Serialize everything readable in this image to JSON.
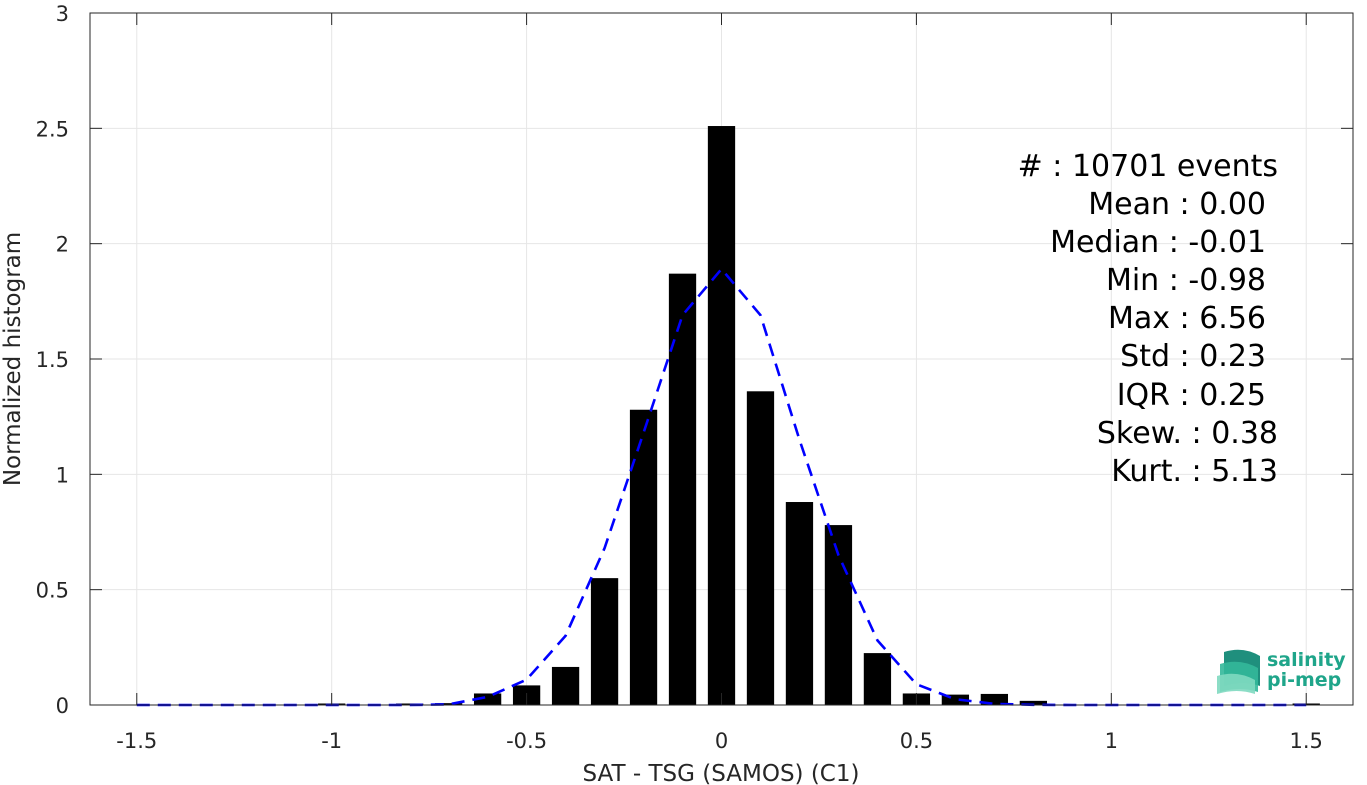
{
  "chart_data": {
    "type": "bar",
    "xlabel": "SAT - TSG (SAMOS) (C1)",
    "ylabel": "Normalized histogram",
    "xlim": [
      -1.62,
      1.62
    ],
    "ylim": [
      0,
      3
    ],
    "xticks": [
      -1.5,
      -1,
      -0.5,
      0,
      0.5,
      1,
      1.5
    ],
    "xtick_labels": [
      "-1.5",
      "-1",
      "-0.5",
      "0",
      "0.5",
      "1",
      "1.5"
    ],
    "yticks": [
      0,
      0.5,
      1,
      1.5,
      2,
      2.5,
      3
    ],
    "ytick_labels": [
      "0",
      "0.5",
      "1",
      "1.5",
      "2",
      "2.5",
      "3"
    ],
    "grid": true,
    "bar_width": 0.07,
    "bars": {
      "x": [
        -1.5,
        -1.4,
        -1.3,
        -1.2,
        -1.1,
        -1.0,
        -0.9,
        -0.8,
        -0.7,
        -0.6,
        -0.5,
        -0.4,
        -0.3,
        -0.2,
        -0.1,
        0.0,
        0.1,
        0.2,
        0.3,
        0.4,
        0.5,
        0.6,
        0.7,
        0.8,
        0.9,
        1.0,
        1.1,
        1.2,
        1.3,
        1.4,
        1.5
      ],
      "values": [
        0,
        0,
        0,
        0,
        0,
        0.003,
        0,
        0.003,
        0.008,
        0.05,
        0.085,
        0.165,
        0.55,
        1.28,
        1.87,
        2.51,
        1.36,
        0.88,
        0.78,
        0.225,
        0.05,
        0.045,
        0.048,
        0.018,
        0,
        0,
        0,
        0,
        0,
        0,
        0.003
      ]
    },
    "fit": {
      "style": "dashed",
      "color": "#0000ff",
      "x": [
        -1.5,
        -1.4,
        -1.3,
        -1.2,
        -1.1,
        -1.0,
        -0.9,
        -0.8,
        -0.7,
        -0.6,
        -0.5,
        -0.4,
        -0.3,
        -0.2,
        -0.1,
        0.0,
        0.1,
        0.2,
        0.3,
        0.4,
        0.5,
        0.6,
        0.7,
        0.8,
        0.9,
        1.0,
        1.1,
        1.2,
        1.3,
        1.4,
        1.5
      ],
      "values": [
        0,
        0,
        0,
        0,
        0,
        0,
        0,
        0,
        0.003,
        0.035,
        0.11,
        0.3,
        0.68,
        1.18,
        1.69,
        1.89,
        1.69,
        1.15,
        0.65,
        0.28,
        0.09,
        0.025,
        0.005,
        0.001,
        0,
        0,
        0,
        0,
        0,
        0,
        0
      ]
    }
  },
  "stats": [
    {
      "label": "#  : 10701 events"
    },
    {
      "label": "Mean : 0.00"
    },
    {
      "label": "Median : -0.01"
    },
    {
      "label": "Min : -0.98"
    },
    {
      "label": "Max : 6.56"
    },
    {
      "label": "Std : 0.23"
    },
    {
      "label": "IQR : 0.25"
    },
    {
      "label": "Skew. : 0.38"
    },
    {
      "label": "Kurt. : 5.13"
    }
  ],
  "logo": {
    "line1": "salinity",
    "line2": "pi-mep",
    "color": "#1fa58a"
  },
  "colors": {
    "bar": "#000000",
    "axis": "#262626",
    "grid": "#e6e6e6"
  }
}
